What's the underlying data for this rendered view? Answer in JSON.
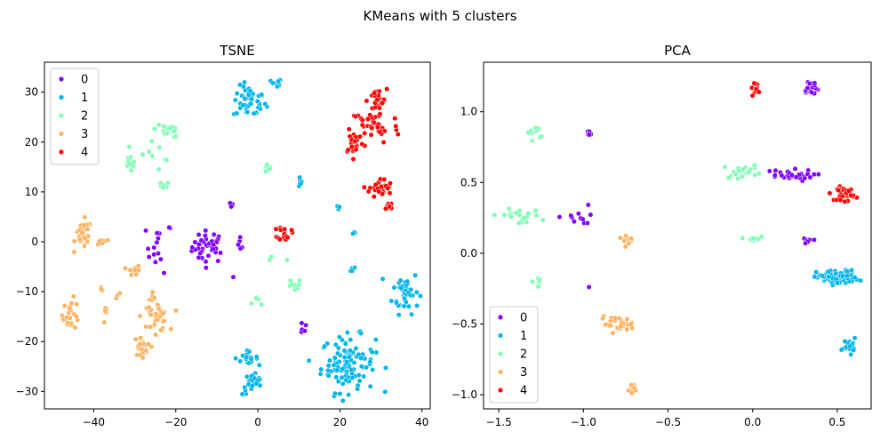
{
  "figure_title": "KMeans with 5 clusters",
  "chart_data": [
    {
      "type": "scatter",
      "title": "TSNE",
      "xlabel": "",
      "ylabel": "",
      "xlim": [
        -52,
        42
      ],
      "ylim": [
        -33.5,
        36
      ],
      "xticks": [
        -40,
        -20,
        0,
        20,
        40
      ],
      "yticks": [
        -30,
        -20,
        -10,
        0,
        10,
        20,
        30
      ],
      "xticklabels": [
        "−40",
        "−20",
        "0",
        "20",
        "40"
      ],
      "yticklabels": [
        "−30",
        "−20",
        "−10",
        "0",
        "10",
        "20",
        "30"
      ],
      "legend_position": "upper-left",
      "series": [
        {
          "name": "0",
          "color": "#8000ff",
          "clusters": [
            {
              "cx": -12,
              "cy": -1,
              "sx": 2,
              "sy": 1.6,
              "n": 40
            },
            {
              "cx": -24,
              "cy": -1,
              "sx": 1.6,
              "sy": 2.6,
              "n": 16
            },
            {
              "cx": -6.5,
              "cy": 7.5,
              "sx": 0.4,
              "sy": 0.3,
              "n": 4
            },
            {
              "cx": -5,
              "cy": -1,
              "sx": 0.8,
              "sy": 1.5,
              "n": 5
            },
            {
              "cx": -6,
              "cy": -7.4,
              "sx": 0.2,
              "sy": 0.2,
              "n": 1
            },
            {
              "cx": 11,
              "cy": -17,
              "sx": 0.4,
              "sy": 0.9,
              "n": 6
            }
          ]
        },
        {
          "name": "1",
          "color": "#00b5eb",
          "clusters": [
            {
              "cx": -2,
              "cy": 28,
              "sx": 2,
              "sy": 1.6,
              "n": 45
            },
            {
              "cx": 4.5,
              "cy": 31.7,
              "sx": 0.6,
              "sy": 0.5,
              "n": 12
            },
            {
              "cx": 10,
              "cy": 12.5,
              "sx": 0.6,
              "sy": 0.8,
              "n": 6
            },
            {
              "cx": 19.5,
              "cy": 6.8,
              "sx": 0.3,
              "sy": 0.3,
              "n": 3
            },
            {
              "cx": 23.5,
              "cy": 1.7,
              "sx": 0.3,
              "sy": 0.2,
              "n": 3
            },
            {
              "cx": 23,
              "cy": -5.3,
              "sx": 0.5,
              "sy": 0.5,
              "n": 6
            },
            {
              "cx": 36,
              "cy": -10,
              "sx": 1.6,
              "sy": 2.2,
              "n": 42
            },
            {
              "cx": 22,
              "cy": -24.5,
              "sx": 3.3,
              "sy": 2.8,
              "n": 110
            },
            {
              "cx": -3,
              "cy": -23.2,
              "sx": 1.5,
              "sy": 0.6,
              "n": 18
            },
            {
              "cx": -1,
              "cy": -28.5,
              "sx": 1.4,
              "sy": 1.1,
              "n": 25
            }
          ]
        },
        {
          "name": "2",
          "color": "#80ffb4",
          "clusters": [
            {
              "cx": -22,
              "cy": 22.7,
              "sx": 1.5,
              "sy": 0.9,
              "n": 20
            },
            {
              "cx": -20,
              "cy": 21.3,
              "sx": 0.4,
              "sy": 0.3,
              "n": 3
            },
            {
              "cx": -31,
              "cy": 15.8,
              "sx": 0.7,
              "sy": 1,
              "n": 12
            },
            {
              "cx": -25.5,
              "cy": 17,
              "sx": 1.5,
              "sy": 1.5,
              "n": 5
            },
            {
              "cx": -23,
              "cy": 11.2,
              "sx": 0.7,
              "sy": 0.4,
              "n": 9
            },
            {
              "cx": -22.5,
              "cy": 16.3,
              "sx": 0.3,
              "sy": 0.2,
              "n": 2
            },
            {
              "cx": -28.5,
              "cy": 17.2,
              "sx": 0.3,
              "sy": 0.3,
              "n": 2
            },
            {
              "cx": 2.5,
              "cy": 14.7,
              "sx": 0.6,
              "sy": 0.4,
              "n": 6
            },
            {
              "cx": 3,
              "cy": -3.5,
              "sx": 0.4,
              "sy": 0.4,
              "n": 2
            },
            {
              "cx": 7,
              "cy": -3.8,
              "sx": 0.2,
              "sy": 0.2,
              "n": 1
            },
            {
              "cx": 9,
              "cy": -9,
              "sx": 0.8,
              "sy": 0.8,
              "n": 10
            },
            {
              "cx": 0,
              "cy": -12,
              "sx": 0.6,
              "sy": 0.4,
              "n": 5
            }
          ]
        },
        {
          "name": "3",
          "color": "#ffb360",
          "clusters": [
            {
              "cx": -42.5,
              "cy": 1.5,
              "sx": 1,
              "sy": 1.4,
              "n": 30
            },
            {
              "cx": -38,
              "cy": 0,
              "sx": 0.6,
              "sy": 0.5,
              "n": 10
            },
            {
              "cx": -30,
              "cy": -5.8,
              "sx": 0.8,
              "sy": 0.5,
              "n": 10
            },
            {
              "cx": -45.5,
              "cy": -14.5,
              "sx": 1,
              "sy": 1.5,
              "n": 25
            },
            {
              "cx": -38,
              "cy": -9.2,
              "sx": 0.3,
              "sy": 0.3,
              "n": 3
            },
            {
              "cx": -34,
              "cy": -10.5,
              "sx": 0.3,
              "sy": 0.4,
              "n": 3
            },
            {
              "cx": -37,
              "cy": -14.5,
              "sx": 0.3,
              "sy": 0.8,
              "n": 6
            },
            {
              "cx": -25,
              "cy": -15,
              "sx": 1.6,
              "sy": 1.5,
              "n": 40
            },
            {
              "cx": -25.5,
              "cy": -11,
              "sx": 0.3,
              "sy": 0.6,
              "n": 4
            },
            {
              "cx": -28.5,
              "cy": -21,
              "sx": 0.8,
              "sy": 1,
              "n": 20
            }
          ]
        },
        {
          "name": "4",
          "color": "#ff0000",
          "clusters": [
            {
              "cx": 29,
              "cy": 28.2,
              "sx": 1.2,
              "sy": 1.2,
              "n": 26
            },
            {
              "cx": 28.5,
              "cy": 23.2,
              "sx": 3,
              "sy": 1.8,
              "n": 42
            },
            {
              "cx": 23.5,
              "cy": 20,
              "sx": 1.2,
              "sy": 1.2,
              "n": 26
            },
            {
              "cx": 30,
              "cy": 10.7,
              "sx": 1.4,
              "sy": 1,
              "n": 32
            },
            {
              "cx": 32,
              "cy": 7.3,
              "sx": 0.5,
              "sy": 0.4,
              "n": 10
            },
            {
              "cx": 6.5,
              "cy": 1.8,
              "sx": 0.8,
              "sy": 0.7,
              "n": 18
            }
          ]
        }
      ]
    },
    {
      "type": "scatter",
      "title": "PCA",
      "xlabel": "",
      "ylabel": "",
      "xlim": [
        -1.59,
        0.7
      ],
      "ylim": [
        -1.1,
        1.35
      ],
      "xticks": [
        -1.5,
        -1.0,
        -0.5,
        0.0,
        0.5
      ],
      "yticks": [
        -1.0,
        -0.5,
        0.0,
        0.5,
        1.0
      ],
      "xticklabels": [
        "−1.5",
        "−1.0",
        "−0.5",
        "0.0",
        "0.5"
      ],
      "yticklabels": [
        "−1.0",
        "−0.5",
        "0.0",
        "0.5",
        "1.0"
      ],
      "legend_position": "lower-left",
      "series": [
        {
          "name": "0",
          "color": "#8000ff",
          "clusters": [
            {
              "cx": 0.34,
              "cy": 1.17,
              "sx": 0.025,
              "sy": 0.03,
              "n": 22
            },
            {
              "cx": -0.97,
              "cy": 0.85,
              "sx": 0.012,
              "sy": 0.015,
              "n": 6
            },
            {
              "cx": 0.2,
              "cy": 0.55,
              "sx": 0.08,
              "sy": 0.02,
              "n": 28
            },
            {
              "cx": -1.05,
              "cy": 0.25,
              "sx": 0.05,
              "sy": 0.02,
              "n": 10
            },
            {
              "cx": -0.97,
              "cy": 0.34,
              "sx": 0.005,
              "sy": 0.005,
              "n": 1
            },
            {
              "cx": 0.33,
              "cy": 0.085,
              "sx": 0.015,
              "sy": 0.01,
              "n": 6
            },
            {
              "cx": -0.97,
              "cy": -0.23,
              "sx": 0.004,
              "sy": 0.006,
              "n": 2
            }
          ]
        },
        {
          "name": "1",
          "color": "#00b5eb",
          "clusters": [
            {
              "cx": 0.5,
              "cy": -0.17,
              "sx": 0.06,
              "sy": 0.025,
              "n": 100
            },
            {
              "cx": 0.57,
              "cy": -0.65,
              "sx": 0.02,
              "sy": 0.025,
              "n": 25
            }
          ]
        },
        {
          "name": "2",
          "color": "#80ffb4",
          "clusters": [
            {
              "cx": -1.29,
              "cy": 0.85,
              "sx": 0.02,
              "sy": 0.025,
              "n": 10
            },
            {
              "cx": -0.05,
              "cy": 0.58,
              "sx": 0.06,
              "sy": 0.025,
              "n": 20
            },
            {
              "cx": -1.39,
              "cy": 0.26,
              "sx": 0.07,
              "sy": 0.025,
              "n": 20
            },
            {
              "cx": 0.0,
              "cy": 0.1,
              "sx": 0.02,
              "sy": 0.015,
              "n": 10
            },
            {
              "cx": -1.27,
              "cy": -0.2,
              "sx": 0.025,
              "sy": 0.015,
              "n": 6
            }
          ]
        },
        {
          "name": "3",
          "color": "#ffb360",
          "clusters": [
            {
              "cx": -0.74,
              "cy": 0.11,
              "sx": 0.025,
              "sy": 0.02,
              "n": 15
            },
            {
              "cx": -0.8,
              "cy": -0.5,
              "sx": 0.05,
              "sy": 0.025,
              "n": 30
            },
            {
              "cx": -0.7,
              "cy": -0.96,
              "sx": 0.015,
              "sy": 0.02,
              "n": 12
            }
          ]
        },
        {
          "name": "4",
          "color": "#ff0000",
          "clusters": [
            {
              "cx": 0.02,
              "cy": 1.17,
              "sx": 0.015,
              "sy": 0.02,
              "n": 14
            },
            {
              "cx": 0.55,
              "cy": 0.42,
              "sx": 0.025,
              "sy": 0.025,
              "n": 38
            }
          ]
        }
      ]
    }
  ]
}
